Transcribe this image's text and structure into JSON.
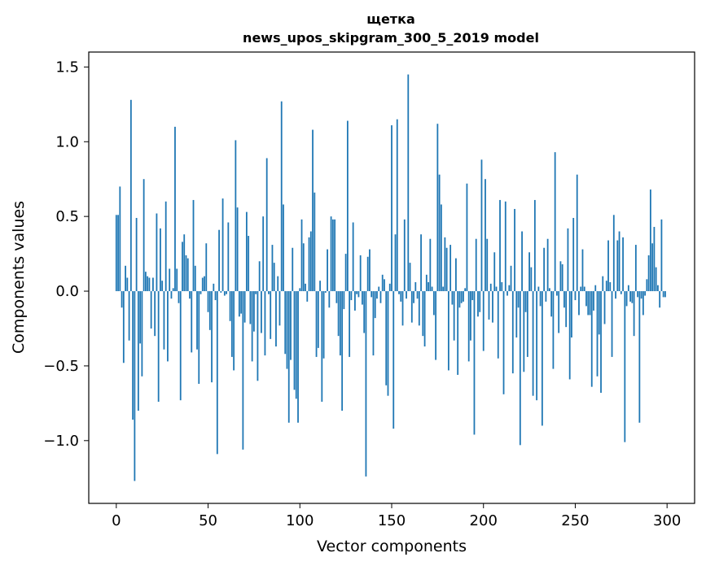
{
  "chart_data": {
    "type": "bar",
    "title_line1": "щетка",
    "title_line2": "news_upos_skipgram_300_5_2019 model",
    "xlabel": "Vector components",
    "ylabel": "Components values",
    "xlim": [
      -15,
      315
    ],
    "ylim": [
      -1.42,
      1.6
    ],
    "xticks": [
      0,
      50,
      100,
      150,
      200,
      250,
      300
    ],
    "xtick_labels": [
      "0",
      "50",
      "100",
      "150",
      "200",
      "250",
      "300"
    ],
    "yticks": [
      -1.0,
      -0.5,
      0.0,
      0.5,
      1.0,
      1.5
    ],
    "ytick_labels": [
      "−1.0",
      "−0.5",
      "0.0",
      "0.5",
      "1.0",
      "1.5"
    ],
    "bar_color": "#1f77b4",
    "grid": false,
    "legend": "none",
    "x_start": 0,
    "values": [
      0.51,
      0.51,
      0.7,
      -0.11,
      -0.48,
      0.17,
      0.09,
      -0.33,
      1.28,
      -0.86,
      -1.27,
      0.49,
      -0.8,
      -0.35,
      -0.57,
      0.75,
      0.13,
      0.1,
      0.09,
      -0.25,
      0.09,
      -0.3,
      0.52,
      -0.74,
      0.42,
      0.07,
      -0.39,
      0.6,
      -0.47,
      0.15,
      -0.05,
      0.02,
      1.1,
      0.15,
      -0.08,
      -0.73,
      0.33,
      0.38,
      0.24,
      0.22,
      -0.05,
      -0.41,
      0.61,
      0.17,
      -0.39,
      -0.62,
      -0.02,
      0.09,
      0.1,
      0.32,
      -0.14,
      -0.26,
      -0.61,
      0.05,
      -0.06,
      -1.09,
      0.41,
      -0.01,
      0.62,
      -0.03,
      -0.02,
      0.46,
      -0.2,
      -0.44,
      -0.53,
      1.01,
      0.56,
      -0.17,
      -0.15,
      -1.06,
      -0.21,
      0.53,
      0.37,
      -0.22,
      -0.47,
      -0.27,
      -0.02,
      -0.6,
      0.2,
      -0.28,
      0.5,
      -0.43,
      0.89,
      -0.02,
      -0.32,
      0.31,
      0.19,
      -0.37,
      0.1,
      -0.23,
      1.27,
      0.58,
      -0.42,
      -0.52,
      -0.88,
      -0.46,
      0.29,
      -0.66,
      -0.72,
      -0.88,
      0.02,
      0.48,
      0.32,
      0.05,
      -0.07,
      0.36,
      0.4,
      1.08,
      0.66,
      -0.44,
      -0.38,
      0.07,
      -0.74,
      -0.45,
      -0.01,
      0.28,
      -0.11,
      0.5,
      0.48,
      0.48,
      -0.08,
      -0.3,
      -0.43,
      -0.8,
      -0.12,
      0.25,
      1.14,
      -0.44,
      -0.06,
      0.46,
      -0.13,
      -0.02,
      -0.04,
      0.24,
      -0.09,
      -0.28,
      -1.24,
      0.23,
      0.28,
      -0.04,
      -0.43,
      -0.18,
      -0.05,
      0.03,
      -0.08,
      0.11,
      0.08,
      -0.63,
      -0.7,
      0.05,
      1.11,
      -0.92,
      0.38,
      1.15,
      -0.02,
      -0.07,
      -0.23,
      0.48,
      -0.05,
      1.45,
      0.19,
      -0.21,
      -0.08,
      0.06,
      -0.05,
      -0.23,
      0.38,
      -0.3,
      -0.37,
      0.11,
      0.06,
      0.35,
      0.03,
      -0.16,
      -0.46,
      1.12,
      0.78,
      0.58,
      0.03,
      0.36,
      0.29,
      -0.53,
      0.31,
      -0.09,
      -0.33,
      0.22,
      -0.56,
      -0.11,
      -0.08,
      -0.07,
      0.02,
      0.72,
      -0.47,
      -0.33,
      -0.06,
      -0.96,
      0.35,
      -0.17,
      -0.14,
      0.88,
      -0.4,
      0.75,
      0.35,
      -0.19,
      0.05,
      -0.21,
      0.26,
      0.03,
      -0.45,
      0.61,
      0.06,
      -0.69,
      0.6,
      -0.03,
      0.04,
      0.17,
      -0.55,
      0.55,
      -0.31,
      -0.11,
      -1.03,
      0.4,
      -0.54,
      -0.14,
      -0.44,
      0.26,
      0.16,
      -0.7,
      0.61,
      -0.73,
      0.03,
      -0.1,
      -0.9,
      0.29,
      -0.07,
      0.35,
      0.02,
      -0.17,
      -0.52,
      0.93,
      -0.03,
      -0.28,
      0.2,
      0.18,
      -0.11,
      -0.24,
      0.42,
      -0.59,
      -0.31,
      0.49,
      -0.06,
      0.78,
      -0.16,
      0.03,
      0.28,
      0.03,
      -0.1,
      -0.16,
      -0.16,
      -0.64,
      -0.13,
      0.04,
      -0.57,
      -0.29,
      -0.68,
      0.1,
      -0.22,
      0.07,
      0.34,
      0.06,
      -0.44,
      0.51,
      -0.05,
      0.34,
      0.4,
      -0.02,
      0.36,
      -1.01,
      -0.1,
      0.04,
      -0.07,
      -0.08,
      -0.3,
      0.31,
      -0.04,
      -0.88,
      -0.05,
      -0.16,
      -0.03,
      0.08,
      0.24,
      0.68,
      0.32,
      0.43,
      0.16,
      0.04,
      -0.11,
      0.48,
      -0.04,
      -0.04
    ]
  }
}
